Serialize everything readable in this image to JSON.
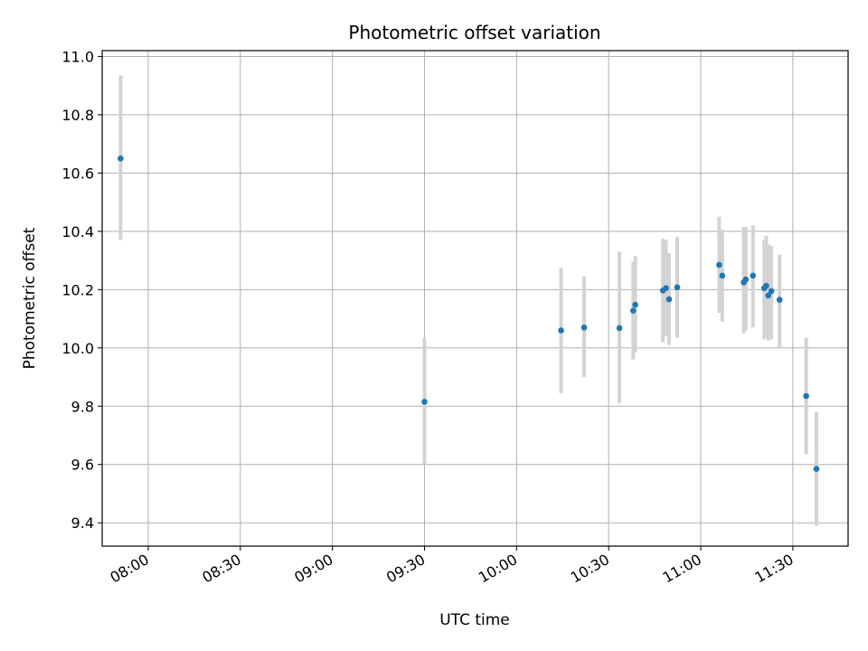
{
  "chart_data": {
    "type": "scatter",
    "title": "Photometric offset variation",
    "xlabel": "UTC time",
    "ylabel": "Photometric offset",
    "xlim": [
      "07:45",
      "11:48"
    ],
    "ylim": [
      9.32,
      11.02
    ],
    "x_ticks": [
      "08:00",
      "08:30",
      "09:00",
      "09:30",
      "10:00",
      "10:30",
      "11:00",
      "11:30"
    ],
    "y_ticks": [
      "9.4",
      "9.6",
      "9.8",
      "10.0",
      "10.2",
      "10.4",
      "10.6",
      "10.8",
      "11.0"
    ],
    "grid": true,
    "colors": {
      "point": "#1f77b4",
      "errorbar": "#d3d3d3",
      "grid": "#b0b0b0"
    },
    "points": [
      {
        "t": "07:51:00",
        "y": 10.65,
        "lo": 10.37,
        "hi": 10.935
      },
      {
        "t": "09:30:00",
        "y": 9.815,
        "lo": 9.6,
        "hi": 10.035
      },
      {
        "t": "10:14:30",
        "y": 10.06,
        "lo": 9.845,
        "hi": 10.275
      },
      {
        "t": "10:22:00",
        "y": 10.07,
        "lo": 9.9,
        "hi": 10.245
      },
      {
        "t": "10:33:30",
        "y": 10.068,
        "lo": 9.81,
        "hi": 10.33
      },
      {
        "t": "10:38:00",
        "y": 10.128,
        "lo": 9.96,
        "hi": 10.295
      },
      {
        "t": "10:38:40",
        "y": 10.148,
        "lo": 9.985,
        "hi": 10.315
      },
      {
        "t": "10:47:40",
        "y": 10.197,
        "lo": 10.02,
        "hi": 10.375
      },
      {
        "t": "10:48:40",
        "y": 10.205,
        "lo": 10.04,
        "hi": 10.37
      },
      {
        "t": "10:49:40",
        "y": 10.167,
        "lo": 10.01,
        "hi": 10.325
      },
      {
        "t": "10:52:20",
        "y": 10.208,
        "lo": 10.035,
        "hi": 10.38
      },
      {
        "t": "11:06:00",
        "y": 10.285,
        "lo": 10.12,
        "hi": 10.45
      },
      {
        "t": "11:07:00",
        "y": 10.248,
        "lo": 10.09,
        "hi": 10.405
      },
      {
        "t": "11:14:00",
        "y": 10.225,
        "lo": 10.05,
        "hi": 10.415
      },
      {
        "t": "11:14:40",
        "y": 10.235,
        "lo": 10.06,
        "hi": 10.415
      },
      {
        "t": "11:17:00",
        "y": 10.248,
        "lo": 10.07,
        "hi": 10.42
      },
      {
        "t": "11:20:40",
        "y": 10.205,
        "lo": 10.03,
        "hi": 10.37
      },
      {
        "t": "11:21:20",
        "y": 10.213,
        "lo": 10.04,
        "hi": 10.385
      },
      {
        "t": "11:22:00",
        "y": 10.18,
        "lo": 10.025,
        "hi": 10.355
      },
      {
        "t": "11:23:00",
        "y": 10.195,
        "lo": 10.03,
        "hi": 10.35
      },
      {
        "t": "11:25:40",
        "y": 10.165,
        "lo": 10.0,
        "hi": 10.32
      },
      {
        "t": "11:34:20",
        "y": 9.835,
        "lo": 9.635,
        "hi": 10.035
      },
      {
        "t": "11:37:40",
        "y": 9.585,
        "lo": 9.39,
        "hi": 9.78
      }
    ]
  }
}
